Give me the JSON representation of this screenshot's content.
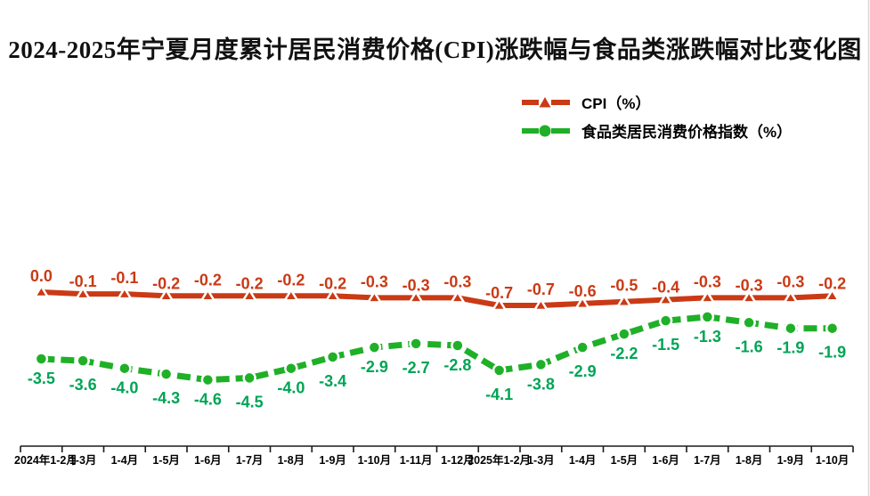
{
  "title": "2024-2025年宁夏月度累计居民消费价格(CPI)涨跌幅与食品类涨跌幅对比变化图",
  "colors": {
    "cpi_line": "#ca3a15",
    "cpi_label": "#ca3a15",
    "food_line": "#1fb028",
    "food_label": "#00a455",
    "axis": "#1a1a1a",
    "x_label": "#000000",
    "right_border": "#d6d6d6",
    "background": "#ffffff"
  },
  "legend": [
    {
      "label": "CPI（%）",
      "marker": "triangle",
      "color": "#ca3a15"
    },
    {
      "label": "食品类居民消费价格指数（%）",
      "marker": "circle",
      "color": "#1fb028"
    }
  ],
  "chart_data": {
    "type": "line",
    "title": "2024-2025年宁夏月度累计居民消费价格(CPI)涨跌幅与食品类涨跌幅对比变化图",
    "categories": [
      "2024年1-2月",
      "1-3月",
      "1-4月",
      "1-5月",
      "1-6月",
      "1-7月",
      "1-8月",
      "1-9月",
      "1-10月",
      "1-11月",
      "1-12月",
      "2025年1-2月",
      "1-3月",
      "1-4月",
      "1-5月",
      "1-6月",
      "1-7月",
      "1-8月",
      "1-9月",
      "1-10月"
    ],
    "series": [
      {
        "name": "CPI（%）",
        "marker": "triangle",
        "line_style": "solid",
        "color": "#ca3a15",
        "label_color": "#ca3a15",
        "label_position": "above",
        "values": [
          0.0,
          -0.1,
          -0.1,
          -0.2,
          -0.2,
          -0.2,
          -0.2,
          -0.2,
          -0.3,
          -0.3,
          -0.3,
          -0.7,
          -0.7,
          -0.6,
          -0.5,
          -0.4,
          -0.3,
          -0.3,
          -0.3,
          -0.2
        ]
      },
      {
        "name": "食品类居民消费价格指数（%）",
        "marker": "circle",
        "line_style": "dashed",
        "color": "#1fb028",
        "label_color": "#00a455",
        "label_position": "below",
        "values": [
          -3.5,
          -3.6,
          -4.0,
          -4.3,
          -4.6,
          -4.5,
          -4.0,
          -3.4,
          -2.9,
          -2.7,
          -2.8,
          -4.1,
          -3.8,
          -2.9,
          -2.2,
          -1.5,
          -1.3,
          -1.6,
          -1.9,
          -1.9
        ]
      }
    ],
    "xlabel": "",
    "ylabel": "",
    "ylim": [
      -8,
      1
    ],
    "grid": false,
    "data_labels": true,
    "data_label_format": "0.0",
    "legend_position": "top-right",
    "y_axis_visible": false
  }
}
